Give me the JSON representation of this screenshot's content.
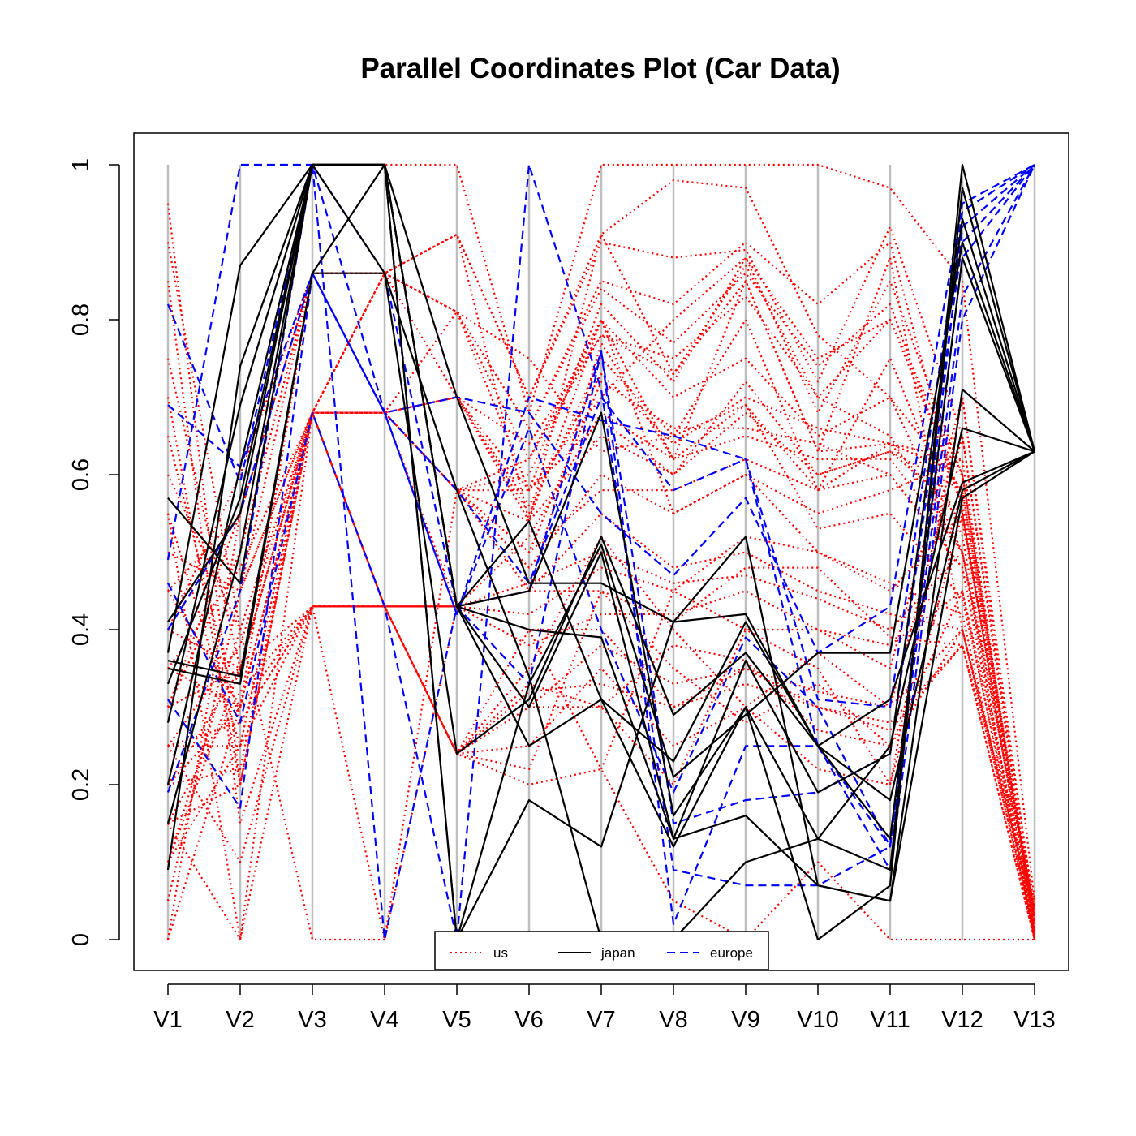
{
  "chart_data": {
    "type": "line",
    "subtype": "parallel-coordinates",
    "title": "Parallel Coordinates Plot (Car Data)",
    "xlabel": "",
    "ylabel": "",
    "categories": [
      "V1",
      "V2",
      "V3",
      "V4",
      "V5",
      "V6",
      "V7",
      "V8",
      "V9",
      "V10",
      "V11",
      "V12",
      "V13"
    ],
    "ylim": [
      0,
      1
    ],
    "yticks": [
      "0",
      "0.2",
      "0.4",
      "0.6",
      "0.8",
      "1"
    ],
    "grid": "vertical",
    "legend": {
      "placement": "bottom-center",
      "entries": [
        {
          "label": "us",
          "color": "#ff0000",
          "linestyle": "dotted"
        },
        {
          "label": "japan",
          "color": "#000000",
          "linestyle": "solid"
        },
        {
          "label": "europe",
          "color": "#0000ff",
          "linestyle": "dashed"
        }
      ]
    },
    "colors": {
      "us": "#ff0000",
      "japan": "#000000",
      "europe": "#0000ff",
      "axis_line": "#bebebe"
    },
    "series": [
      {
        "group": "us",
        "values": [
          0.0,
          0.3,
          0.68,
          0.86,
          0.91,
          0.54,
          0.91,
          0.73,
          0.85,
          0.63,
          0.64,
          0.6,
          0.02
        ]
      },
      {
        "group": "us",
        "values": [
          0.2,
          0.3,
          0.86,
          0.86,
          0.81,
          0.75,
          0.63,
          0.65,
          0.69,
          0.58,
          0.64,
          0.62,
          0.0
        ]
      },
      {
        "group": "us",
        "values": [
          0.1,
          0.4,
          0.68,
          0.68,
          0.7,
          0.54,
          0.8,
          0.62,
          0.69,
          0.53,
          0.55,
          0.44,
          0.02
        ]
      },
      {
        "group": "us",
        "values": [
          0.25,
          0.25,
          0.43,
          0.43,
          0.43,
          0.45,
          0.45,
          0.41,
          0.48,
          0.48,
          0.39,
          0.38,
          0.04
        ]
      },
      {
        "group": "us",
        "values": [
          0.95,
          0.2,
          0.68,
          0.43,
          0.24,
          0.4,
          0.22,
          0.45,
          0.4,
          0.35,
          0.2,
          0.55,
          0.03
        ]
      },
      {
        "group": "us",
        "values": [
          0.3,
          0.5,
          0.86,
          0.68,
          0.58,
          0.45,
          0.77,
          0.62,
          0.85,
          0.63,
          0.88,
          0.4,
          0.01
        ]
      },
      {
        "group": "us",
        "values": [
          0.15,
          0.0,
          0.68,
          0.43,
          0.24,
          0.33,
          0.3,
          0.2,
          0.4,
          0.4,
          0.35,
          0.7,
          0.0
        ]
      },
      {
        "group": "us",
        "values": [
          0.4,
          0.35,
          0.68,
          0.86,
          0.91,
          0.7,
          0.91,
          0.98,
          0.97,
          0.78,
          0.7,
          0.5,
          0.05
        ]
      },
      {
        "group": "us",
        "values": [
          0.5,
          0.45,
          0.68,
          0.68,
          0.81,
          0.62,
          0.8,
          0.55,
          0.6,
          0.5,
          0.45,
          0.55,
          0.0
        ]
      },
      {
        "group": "us",
        "values": [
          0.2,
          0.35,
          0.43,
          0.43,
          0.24,
          0.35,
          0.52,
          0.4,
          0.3,
          0.37,
          0.3,
          0.65,
          0.02
        ]
      },
      {
        "group": "us",
        "values": [
          0.0,
          0.55,
          1.0,
          1.0,
          1.0,
          0.68,
          1.0,
          1.0,
          1.0,
          1.0,
          0.97,
          0.85,
          0.05
        ]
      },
      {
        "group": "us",
        "values": [
          0.7,
          0.2,
          0.68,
          0.43,
          0.24,
          0.22,
          0.45,
          0.35,
          0.28,
          0.33,
          0.25,
          0.4,
          0.03
        ]
      },
      {
        "group": "us",
        "values": [
          0.35,
          0.3,
          0.68,
          0.68,
          0.7,
          0.58,
          0.7,
          0.8,
          0.88,
          0.75,
          0.8,
          0.6,
          0.01
        ]
      },
      {
        "group": "us",
        "values": [
          0.25,
          0.1,
          0.43,
          0.0,
          0.43,
          0.3,
          0.3,
          0.38,
          0.36,
          0.27,
          0.25,
          0.45,
          0.0
        ]
      },
      {
        "group": "us",
        "values": [
          0.6,
          0.4,
          0.0,
          0.0,
          0.58,
          0.62,
          0.78,
          0.73,
          0.87,
          0.7,
          0.65,
          0.5,
          0.04
        ]
      },
      {
        "group": "us",
        "values": [
          0.1,
          0.25,
          0.68,
          0.68,
          0.58,
          0.58,
          0.67,
          0.6,
          0.72,
          0.6,
          0.63,
          0.58,
          0.02
        ]
      },
      {
        "group": "us",
        "values": [
          0.3,
          0.35,
          0.68,
          0.43,
          0.43,
          0.4,
          0.4,
          0.3,
          0.35,
          0.3,
          0.28,
          0.38,
          0.0
        ]
      },
      {
        "group": "us",
        "values": [
          0.85,
          0.15,
          0.43,
          0.43,
          0.24,
          0.25,
          0.35,
          0.25,
          0.3,
          0.22,
          0.2,
          0.7,
          0.03
        ]
      },
      {
        "group": "us",
        "values": [
          0.45,
          0.55,
          0.86,
          0.86,
          0.81,
          0.66,
          0.85,
          0.82,
          0.9,
          0.82,
          0.9,
          0.55,
          0.01
        ]
      },
      {
        "group": "us",
        "values": [
          0.2,
          0.3,
          0.68,
          0.68,
          0.58,
          0.5,
          0.72,
          0.66,
          0.66,
          0.64,
          0.6,
          0.48,
          0.0
        ]
      },
      {
        "group": "us",
        "values": [
          0.05,
          0.45,
          0.68,
          0.68,
          0.7,
          0.55,
          0.75,
          0.65,
          0.8,
          0.58,
          0.75,
          0.52,
          0.02
        ]
      },
      {
        "group": "us",
        "values": [
          0.55,
          0.0,
          0.43,
          0.43,
          0.24,
          0.2,
          0.22,
          0.05,
          0.0,
          0.1,
          0.0,
          0.0,
          0.0
        ]
      },
      {
        "group": "us",
        "values": [
          0.3,
          0.5,
          0.86,
          0.68,
          0.58,
          0.6,
          0.8,
          0.7,
          0.75,
          0.65,
          0.7,
          0.58,
          0.03
        ]
      },
      {
        "group": "us",
        "values": [
          0.15,
          0.2,
          0.68,
          0.43,
          0.43,
          0.45,
          0.55,
          0.48,
          0.5,
          0.45,
          0.42,
          0.4,
          0.01
        ]
      },
      {
        "group": "us",
        "values": [
          0.75,
          0.35,
          0.68,
          0.68,
          0.58,
          0.48,
          0.6,
          0.55,
          0.6,
          0.55,
          0.58,
          0.62,
          0.0
        ]
      },
      {
        "group": "us",
        "values": [
          0.25,
          0.28,
          0.43,
          0.43,
          0.43,
          0.38,
          0.42,
          0.42,
          0.45,
          0.4,
          0.38,
          0.45,
          0.04
        ]
      },
      {
        "group": "us",
        "values": [
          0.4,
          0.6,
          0.86,
          0.86,
          0.7,
          0.64,
          0.78,
          0.75,
          0.83,
          0.7,
          0.8,
          0.57,
          0.02
        ]
      },
      {
        "group": "us",
        "values": [
          0.1,
          0.35,
          0.68,
          0.68,
          0.43,
          0.52,
          0.68,
          0.62,
          0.65,
          0.62,
          0.62,
          0.5,
          0.0
        ]
      },
      {
        "group": "us",
        "values": [
          0.65,
          0.28,
          0.43,
          0.43,
          0.24,
          0.3,
          0.38,
          0.33,
          0.35,
          0.32,
          0.3,
          0.4,
          0.03
        ]
      },
      {
        "group": "us",
        "values": [
          0.35,
          0.48,
          0.68,
          0.86,
          0.81,
          0.58,
          0.82,
          0.72,
          0.88,
          0.68,
          0.85,
          0.6,
          0.01
        ]
      },
      {
        "group": "us",
        "values": [
          0.2,
          0.22,
          0.68,
          0.43,
          0.43,
          0.46,
          0.5,
          0.46,
          0.47,
          0.44,
          0.4,
          0.5,
          0.0
        ]
      },
      {
        "group": "us",
        "values": [
          0.9,
          0.4,
          0.68,
          0.68,
          0.58,
          0.54,
          0.65,
          0.6,
          0.68,
          0.6,
          0.63,
          0.55,
          0.02
        ]
      },
      {
        "group": "us",
        "values": [
          0.3,
          0.55,
          0.86,
          0.86,
          0.91,
          0.7,
          0.9,
          0.88,
          0.89,
          0.72,
          0.92,
          0.65,
          0.04
        ]
      },
      {
        "group": "us",
        "values": [
          0.15,
          0.32,
          0.43,
          0.43,
          0.43,
          0.42,
          0.48,
          0.45,
          0.52,
          0.5,
          0.46,
          0.42,
          0.0
        ]
      },
      {
        "group": "us",
        "values": [
          0.55,
          0.25,
          0.68,
          0.68,
          0.58,
          0.5,
          0.58,
          0.58,
          0.62,
          0.58,
          0.6,
          0.48,
          0.01
        ]
      },
      {
        "group": "us",
        "values": [
          0.25,
          0.38,
          0.68,
          0.68,
          0.7,
          0.56,
          0.73,
          0.64,
          0.7,
          0.66,
          0.64,
          0.54,
          0.03
        ]
      },
      {
        "group": "us",
        "values": [
          0.45,
          0.3,
          0.43,
          0.43,
          0.24,
          0.32,
          0.33,
          0.3,
          0.33,
          0.3,
          0.27,
          0.38,
          0.0
        ]
      },
      {
        "group": "us",
        "values": [
          0.05,
          0.45,
          0.86,
          0.86,
          0.81,
          0.66,
          0.84,
          0.77,
          0.86,
          0.74,
          0.82,
          0.56,
          0.02
        ]
      },
      {
        "group": "japan",
        "values": [
          0.57,
          0.46,
          1.0,
          1.0,
          0.7,
          0.46,
          0.46,
          0.41,
          0.42,
          0.25,
          0.31,
          0.59,
          0.63
        ]
      },
      {
        "group": "japan",
        "values": [
          0.37,
          0.87,
          1.0,
          1.0,
          0.43,
          0.4,
          0.39,
          0.13,
          0.36,
          0.19,
          0.24,
          0.93,
          0.63
        ]
      },
      {
        "group": "japan",
        "values": [
          0.09,
          0.74,
          1.0,
          1.0,
          0.43,
          0.54,
          0.31,
          0.12,
          0.3,
          0.13,
          0.09,
          0.97,
          0.63
        ]
      },
      {
        "group": "japan",
        "values": [
          0.35,
          0.33,
          0.86,
          1.0,
          0.0,
          0.18,
          0.12,
          0.41,
          0.52,
          0.07,
          0.05,
          0.71,
          0.63
        ]
      },
      {
        "group": "japan",
        "values": [
          0.41,
          0.55,
          1.0,
          0.86,
          0.58,
          0.34,
          0.0,
          0.0,
          0.1,
          0.13,
          0.25,
          0.66,
          0.63
        ]
      },
      {
        "group": "japan",
        "values": [
          0.28,
          0.69,
          1.0,
          1.0,
          0.43,
          0.25,
          0.31,
          0.23,
          0.41,
          0.25,
          0.18,
          0.58,
          0.63
        ]
      },
      {
        "group": "japan",
        "values": [
          0.36,
          0.34,
          0.86,
          0.86,
          0.24,
          0.31,
          0.52,
          0.29,
          0.37,
          0.25,
          0.13,
          0.88,
          0.63
        ]
      },
      {
        "group": "japan",
        "values": [
          0.2,
          0.61,
          1.0,
          1.0,
          0.43,
          0.45,
          0.68,
          0.16,
          0.3,
          0.0,
          0.07,
          1.0,
          0.63
        ]
      },
      {
        "group": "japan",
        "values": [
          0.33,
          0.57,
          1.0,
          1.0,
          0.0,
          0.33,
          0.51,
          0.21,
          0.29,
          0.37,
          0.37,
          0.9,
          0.63
        ]
      },
      {
        "group": "japan",
        "values": [
          0.15,
          0.5,
          1.0,
          1.0,
          0.43,
          0.3,
          0.5,
          0.13,
          0.16,
          0.07,
          0.05,
          0.57,
          0.63
        ]
      },
      {
        "group": "europe",
        "values": [
          0.49,
          1.0,
          1.0,
          0.68,
          0.58,
          0.46,
          0.7,
          0.58,
          0.62,
          0.31,
          0.3,
          0.94,
          1.0
        ]
      },
      {
        "group": "europe",
        "values": [
          0.82,
          0.59,
          1.0,
          0.0,
          0.43,
          0.33,
          0.76,
          0.15,
          0.18,
          0.19,
          0.24,
          0.9,
          1.0
        ]
      },
      {
        "group": "europe",
        "values": [
          0.69,
          0.61,
          0.86,
          0.68,
          0.42,
          0.7,
          0.67,
          0.65,
          0.62,
          0.25,
          0.12,
          0.88,
          1.0
        ]
      },
      {
        "group": "europe",
        "values": [
          0.31,
          0.17,
          0.86,
          0.68,
          0.7,
          0.68,
          0.55,
          0.47,
          0.57,
          0.37,
          0.43,
          0.95,
          1.0
        ]
      },
      {
        "group": "europe",
        "values": [
          0.46,
          0.28,
          0.68,
          0.43,
          0.0,
          1.0,
          0.71,
          0.09,
          0.07,
          0.07,
          0.12,
          0.83,
          1.0
        ]
      },
      {
        "group": "europe",
        "values": [
          0.19,
          0.45,
          1.0,
          0.86,
          0.43,
          0.45,
          0.76,
          0.02,
          0.25,
          0.25,
          0.09,
          0.8,
          1.0
        ]
      },
      {
        "group": "europe",
        "values": [
          0.4,
          0.55,
          0.86,
          0.68,
          0.42,
          0.66,
          0.4,
          0.19,
          0.39,
          0.3,
          0.12,
          0.92,
          1.0
        ]
      }
    ]
  }
}
